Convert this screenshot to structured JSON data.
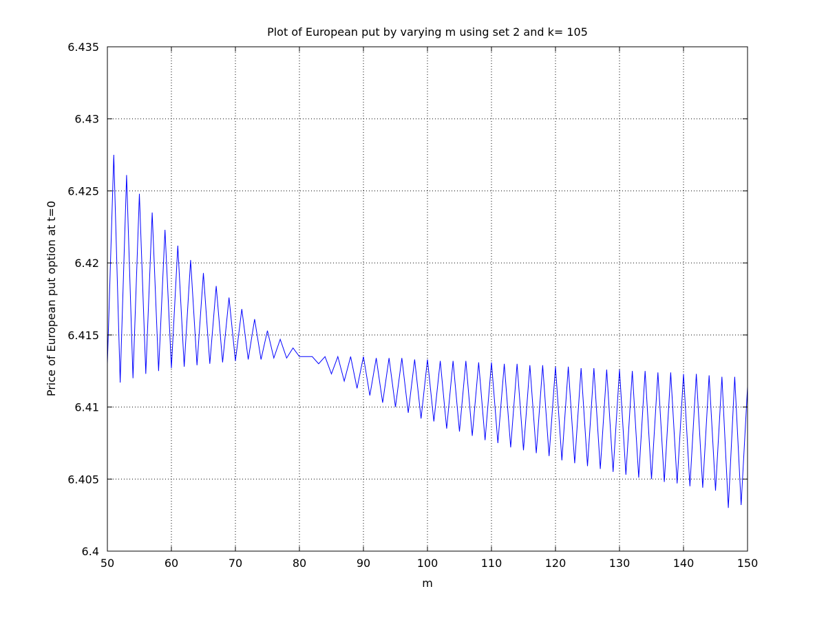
{
  "chart_data": {
    "type": "line",
    "title": "Plot of European put by varying m using set 2 and k= 105",
    "xlabel": "m",
    "ylabel": "Price of European put option at t=0",
    "xlim": [
      50,
      150
    ],
    "ylim": [
      6.4,
      6.435
    ],
    "xticks": [
      "50",
      "60",
      "70",
      "80",
      "90",
      "100",
      "110",
      "120",
      "130",
      "140",
      "150"
    ],
    "yticks": [
      "6.4",
      "6.405",
      "6.41",
      "6.415",
      "6.42",
      "6.425",
      "6.43",
      "6.435"
    ],
    "grid": true,
    "series_color": "#0000ff",
    "series": [
      {
        "x": [
          50,
          51,
          52,
          53,
          54,
          55,
          56,
          57,
          58,
          59,
          60,
          61,
          62,
          63,
          64,
          65,
          66,
          67,
          68,
          69,
          70,
          71,
          72,
          73,
          74,
          75,
          76,
          77,
          78,
          79,
          80,
          81,
          82,
          83,
          84,
          85,
          86,
          87,
          88,
          89,
          90,
          91,
          92,
          93,
          94,
          95,
          96,
          97,
          98,
          99,
          100,
          101,
          102,
          103,
          104,
          105,
          106,
          107,
          108,
          109,
          110,
          111,
          112,
          113,
          114,
          115,
          116,
          117,
          118,
          119,
          120,
          121,
          122,
          123,
          124,
          125,
          126,
          127,
          128,
          129,
          130,
          131,
          132,
          133,
          134,
          135,
          136,
          137,
          138,
          139,
          140,
          141,
          142,
          143,
          144,
          145,
          146,
          147,
          148,
          149,
          150
        ],
        "y": [
          6.413,
          6.4275,
          6.4117,
          6.4261,
          6.412,
          6.4248,
          6.4123,
          6.4235,
          6.4125,
          6.4223,
          6.4127,
          6.4212,
          6.4128,
          6.4202,
          6.4129,
          6.4193,
          6.413,
          6.4184,
          6.4131,
          6.4176,
          6.4132,
          6.4168,
          6.4133,
          6.4161,
          6.4133,
          6.4153,
          6.4134,
          6.4147,
          6.4134,
          6.4141,
          6.4135,
          6.4135,
          6.4135,
          6.413,
          6.4135,
          6.4123,
          6.4135,
          6.4118,
          6.4135,
          6.4113,
          6.4135,
          6.4108,
          6.4134,
          6.4103,
          6.4134,
          6.41,
          6.4134,
          6.4096,
          6.4133,
          6.4092,
          6.4133,
          6.409,
          6.4132,
          6.4085,
          6.4132,
          6.4083,
          6.4132,
          6.408,
          6.4131,
          6.4077,
          6.4131,
          6.4075,
          6.413,
          6.4072,
          6.413,
          6.407,
          6.4129,
          6.4068,
          6.4129,
          6.4066,
          6.4128,
          6.4063,
          6.4128,
          6.4061,
          6.4127,
          6.4059,
          6.4127,
          6.4057,
          6.4126,
          6.4055,
          6.4126,
          6.4053,
          6.4125,
          6.4051,
          6.4125,
          6.405,
          6.4124,
          6.4048,
          6.4124,
          6.4047,
          6.4123,
          6.4045,
          6.4123,
          6.4044,
          6.4122,
          6.4042,
          6.4121,
          6.403,
          6.4121,
          6.4032,
          6.4114
        ]
      }
    ]
  }
}
